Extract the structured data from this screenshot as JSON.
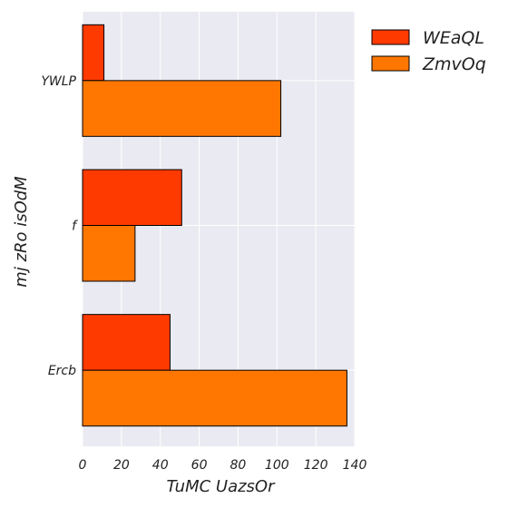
{
  "chart_data": {
    "type": "bar",
    "orientation": "horizontal",
    "categories": [
      "YWLP",
      "f",
      "Ercb"
    ],
    "series": [
      {
        "name": "WEaQL",
        "values": [
          11,
          51,
          45
        ],
        "color": "#ff3a00"
      },
      {
        "name": "ZmvOq",
        "values": [
          102,
          27,
          136
        ],
        "color": "#ff7700"
      }
    ],
    "xlabel": "TuMC   UazsOr",
    "ylabel": "mj zRo isOdM",
    "xlim": [
      0,
      140
    ],
    "xticks": [
      0,
      20,
      40,
      60,
      80,
      100,
      120,
      140
    ],
    "grid": true,
    "legend_position": "outside-top-right",
    "background": "#eaeaf2"
  }
}
